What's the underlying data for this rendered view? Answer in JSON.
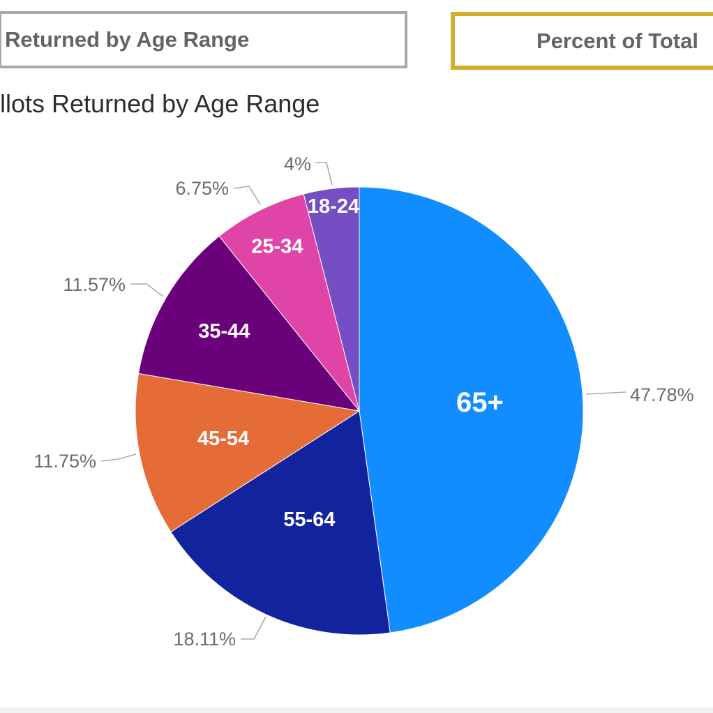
{
  "toolbar": {
    "buttons": [
      {
        "label": "Returned by Age Range",
        "state": "default",
        "border_color": "#a8a8a8"
      },
      {
        "label": "Percent of Total",
        "state": "selected",
        "border_color": "#d3ae2b"
      }
    ]
  },
  "chart_title": "llots Returned by Age Range",
  "chart_data": {
    "type": "pie",
    "title": "llots Returned by Age Range",
    "categories": [
      "65+",
      "55-64",
      "45-54",
      "35-44",
      "25-34",
      "18-24"
    ],
    "values": [
      47.78,
      18.11,
      11.75,
      11.57,
      6.75,
      4
    ],
    "unit": "%",
    "callout_labels": [
      "47.78%",
      "18.11%",
      "11.75%",
      "11.57%",
      "6.75%",
      "4%"
    ],
    "colors": [
      "#118DFF",
      "#12239E",
      "#E66C37",
      "#6B007B",
      "#E044A7",
      "#744EC2"
    ],
    "slice_label_color": "#ffffff",
    "callout_text_color": "#6b6b6b",
    "leader_line_color": "#a9a9a9",
    "start_angle_deg": 0,
    "direction": "clockwise",
    "legend": "none"
  },
  "footer": {
    "divider_color": "#f2f2f2"
  }
}
